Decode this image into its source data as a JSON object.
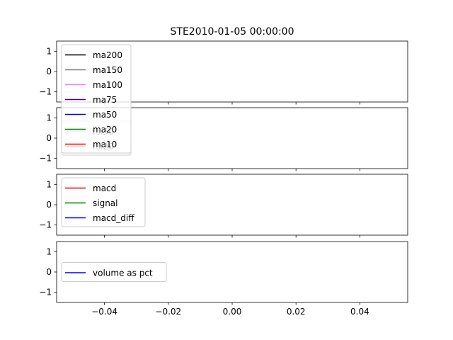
{
  "figure": {
    "title": "STE2010-01-05 00:00:00"
  },
  "chart_data": [
    {
      "type": "line",
      "title": "STE2010-01-05 00:00:00",
      "xlabel": "",
      "ylabel": "",
      "xlim": [
        -0.055,
        0.055
      ],
      "ylim": [
        -1.5,
        1.5
      ],
      "yticks": [
        1,
        0,
        -1
      ],
      "ytick_labels": [
        "1",
        "0",
        "−1"
      ],
      "grid": false,
      "legend": {
        "placement": "upper-left",
        "entries": [
          {
            "name": "ma200",
            "color": "#000000"
          },
          {
            "name": "ma150",
            "color": "#808080"
          },
          {
            "name": "ma100",
            "color": "#ee82ee"
          },
          {
            "name": "ma75",
            "color": "#4b0082"
          },
          {
            "name": "ma50",
            "color": "#0000ff"
          },
          {
            "name": "ma20",
            "color": "#008000"
          },
          {
            "name": "ma10",
            "color": "#ff0000"
          }
        ]
      },
      "series": [
        {
          "name": "ma200",
          "x": [],
          "y": []
        },
        {
          "name": "ma150",
          "x": [],
          "y": []
        },
        {
          "name": "ma100",
          "x": [],
          "y": []
        },
        {
          "name": "ma75",
          "x": [],
          "y": []
        },
        {
          "name": "ma50",
          "x": [],
          "y": []
        },
        {
          "name": "ma20",
          "x": [],
          "y": []
        },
        {
          "name": "ma10",
          "x": [],
          "y": []
        }
      ]
    },
    {
      "type": "line",
      "xlim": [
        -0.055,
        0.055
      ],
      "ylim": [
        -1.5,
        1.5
      ],
      "yticks": [
        1,
        0,
        -1
      ],
      "ytick_labels": [
        "1",
        "0",
        "−1"
      ],
      "grid": false,
      "legend": {
        "placement": "center-left",
        "entries": [
          {
            "name": "rsi50",
            "color": "#ee82ee"
          },
          {
            "name": "rsi20",
            "color": "#ff0000"
          }
        ]
      },
      "series": [
        {
          "name": "rsi50",
          "x": [],
          "y": []
        },
        {
          "name": "rsi20",
          "x": [],
          "y": []
        }
      ]
    },
    {
      "type": "line",
      "xlim": [
        -0.055,
        0.055
      ],
      "ylim": [
        -1.5,
        1.5
      ],
      "yticks": [
        1,
        0,
        -1
      ],
      "ytick_labels": [
        "1",
        "0",
        "−1"
      ],
      "grid": false,
      "legend": {
        "placement": "upper-left",
        "entries": [
          {
            "name": "macd",
            "color": "#ff0000"
          },
          {
            "name": "signal",
            "color": "#008000"
          },
          {
            "name": "macd_diff",
            "color": "#0000ff"
          }
        ]
      },
      "series": [
        {
          "name": "macd",
          "x": [],
          "y": []
        },
        {
          "name": "signal",
          "x": [],
          "y": []
        },
        {
          "name": "macd_diff",
          "x": [],
          "y": []
        }
      ]
    },
    {
      "type": "line",
      "xlim": [
        -0.055,
        0.055
      ],
      "ylim": [
        -1.5,
        1.5
      ],
      "yticks": [
        1,
        0,
        -1
      ],
      "ytick_labels": [
        "1",
        "0",
        "−1"
      ],
      "xticks": [
        -0.04,
        -0.02,
        0,
        0.02,
        0.04
      ],
      "xtick_labels": [
        "−0.04",
        "−0.02",
        "0.00",
        "0.02",
        "0.04"
      ],
      "grid": false,
      "legend": {
        "placement": "center-left",
        "entries": [
          {
            "name": "volume as pct",
            "color": "#0000ff"
          }
        ]
      },
      "series": [
        {
          "name": "volume as pct",
          "x": [],
          "y": []
        }
      ]
    }
  ]
}
